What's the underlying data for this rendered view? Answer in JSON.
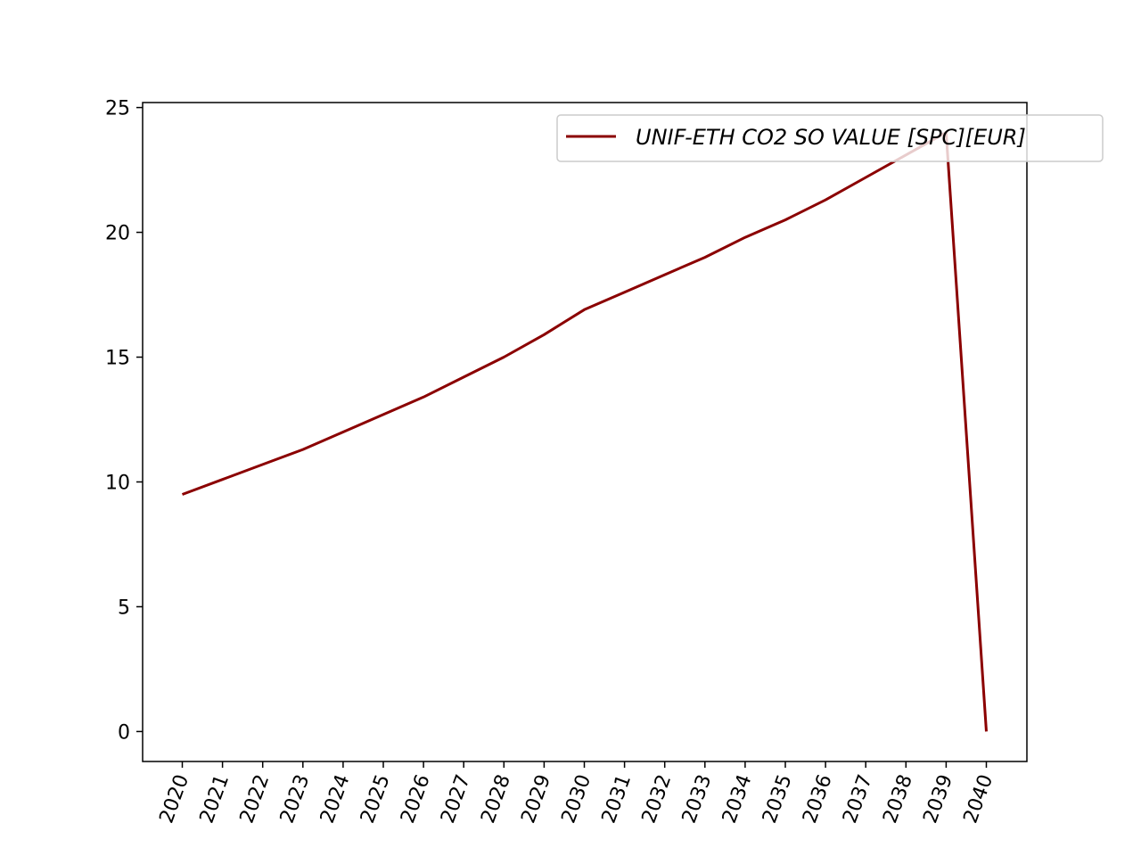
{
  "chart_data": {
    "type": "line",
    "title": "",
    "xlabel": "",
    "ylabel": "",
    "x": [
      "2020",
      "2021",
      "2022",
      "2023",
      "2024",
      "2025",
      "2026",
      "2027",
      "2028",
      "2029",
      "2030",
      "2031",
      "2032",
      "2033",
      "2034",
      "2035",
      "2036",
      "2037",
      "2038",
      "2039",
      "2040"
    ],
    "series": [
      {
        "name": "UNIF-ETH CO2 SO VALUE [SPC][EUR]",
        "color": "#8b0000",
        "values": [
          9.5,
          10.1,
          10.7,
          11.3,
          12.0,
          12.7,
          13.4,
          14.2,
          15.0,
          15.9,
          16.9,
          17.6,
          18.3,
          19.0,
          19.8,
          20.5,
          21.3,
          22.2,
          23.1,
          24.0,
          0.0
        ]
      }
    ],
    "ylim": [
      -1.2,
      25.2
    ],
    "yticks": [
      0,
      5,
      10,
      15,
      20,
      25
    ],
    "grid": false,
    "legend_position": "top-right",
    "x_tick_rotation": -70
  }
}
